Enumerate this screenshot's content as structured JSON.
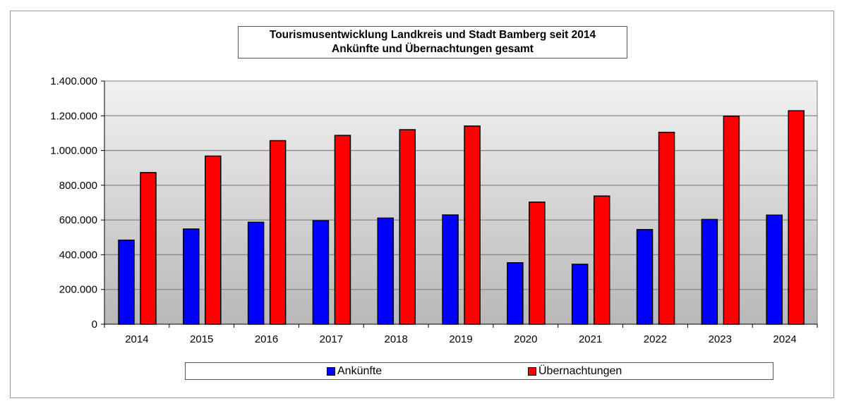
{
  "chart_data": {
    "type": "bar",
    "title": "Tourismusentwicklung Landkreis und Stadt Bamberg seit 2014",
    "subtitle": "Ankünfte und Übernachtungen gesamt",
    "categories": [
      "2014",
      "2015",
      "2016",
      "2017",
      "2018",
      "2019",
      "2020",
      "2021",
      "2022",
      "2023",
      "2024"
    ],
    "series": [
      {
        "name": "Ankünfte",
        "color": "#0000ff",
        "values": [
          484000,
          548000,
          587000,
          596000,
          611000,
          629000,
          354000,
          345000,
          545000,
          603000,
          628000
        ]
      },
      {
        "name": "Übernachtungen",
        "color": "#ff0000",
        "values": [
          873000,
          968000,
          1057000,
          1087000,
          1120000,
          1141000,
          703000,
          738000,
          1105000,
          1198000,
          1229000
        ]
      }
    ],
    "ylim": [
      0,
      1400000
    ],
    "yticks": [
      "0",
      "200.000",
      "400.000",
      "600.000",
      "800.000",
      "1.000.000",
      "1.200.000",
      "1.400.000"
    ],
    "grid": true,
    "legend": "bottom"
  }
}
